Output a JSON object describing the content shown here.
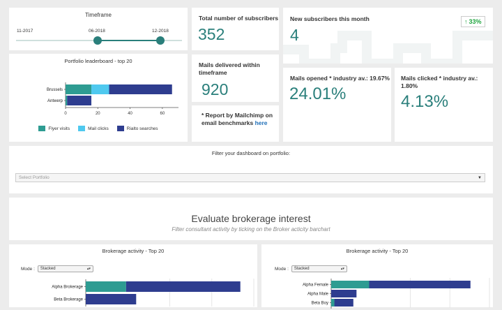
{
  "timeframe": {
    "title": "Timeframe",
    "ticks": [
      "11-2017",
      "06-2018",
      "12-2018"
    ]
  },
  "leaderboard": {
    "title": "Portfolio leaderboard - top 20",
    "legend": [
      "Flyer visits",
      "Mail clicks",
      "Rialto searches"
    ],
    "chart_data": {
      "type": "bar",
      "orientation": "horizontal",
      "stacked": true,
      "categories": [
        "Brussels",
        "Antwerp"
      ],
      "series": [
        {
          "name": "Flyer visits",
          "values": [
            16,
            1
          ],
          "color": "#2e9c92"
        },
        {
          "name": "Mail clicks",
          "values": [
            11,
            0
          ],
          "color": "#4fc9ef"
        },
        {
          "name": "Rialto searches",
          "values": [
            39,
            15
          ],
          "color": "#2e3d8f"
        }
      ],
      "xlim": [
        0,
        70
      ],
      "xticks": [
        0,
        20,
        40,
        60
      ]
    }
  },
  "kpis": {
    "total_subscribers": {
      "label": "Total number of subscribers",
      "value": "352"
    },
    "new_subscribers": {
      "label": "New subscribers this month",
      "value": "4",
      "badge": "33%",
      "badge_icon": "arrow-up-icon"
    },
    "mails_delivered": {
      "label": "Mails delivered within timeframe",
      "value": "920"
    },
    "report_note": {
      "text": "* Report by Mailchimp on email benchmarks",
      "link": "here"
    },
    "mails_opened": {
      "label": "Mails opened * industry av.: 19.67%",
      "value": "24.01%"
    },
    "mails_clicked": {
      "label": "Mails clicked * industry av.: 1.80%",
      "value": "4.13%"
    }
  },
  "filter": {
    "label": "Filter your dashboard on portfolio:",
    "placeholder": "Select Portfolio"
  },
  "evaluate": {
    "title": "Evaluate brokerage interest",
    "subtitle": "Filter consultant activity by ticking on the Broker acticity barchart"
  },
  "brokerage_left": {
    "title": "Brokerage activity - Top 20",
    "mode_label": "Mode :",
    "mode_value": "Stacked",
    "chart_data": {
      "type": "bar",
      "orientation": "horizontal",
      "stacked": true,
      "categories": [
        "Alpha Brokerage",
        "Beta Brokerage"
      ],
      "series": [
        {
          "values": [
            24,
            0
          ],
          "color": "#2e9c92"
        },
        {
          "values": [
            68,
            30
          ],
          "color": "#2e3d8f"
        }
      ],
      "xlim": [
        0,
        100
      ]
    }
  },
  "brokerage_right": {
    "title": "Brokerage activity - Top 20",
    "mode_label": "Mode :",
    "mode_value": "Stacked",
    "chart_data": {
      "type": "bar",
      "orientation": "horizontal",
      "stacked": true,
      "categories": [
        "Alpha Female",
        "Alpha Male",
        "Beta Boy"
      ],
      "series": [
        {
          "values": [
            12,
            0,
            1
          ],
          "color": "#2e9c92"
        },
        {
          "values": [
            32,
            8,
            6
          ],
          "color": "#2e3d8f"
        }
      ],
      "xlim": [
        0,
        50
      ]
    }
  }
}
